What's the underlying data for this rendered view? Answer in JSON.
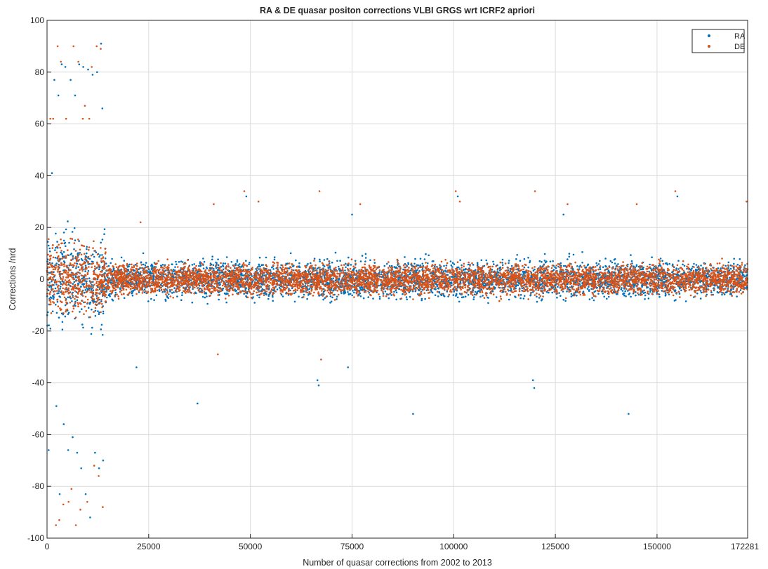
{
  "chart_data": {
    "type": "scatter",
    "title": "RA & DE quasar positon corrections VLBI GRGS wrt ICRF2 apriori",
    "xlabel": "Number of quasar corrections from 2002 to 2013",
    "ylabel": "Corrections /nrd",
    "xlim": [
      0,
      172281
    ],
    "ylim": [
      -100,
      100
    ],
    "xticks": [
      0,
      25000,
      50000,
      75000,
      100000,
      125000,
      150000,
      172281
    ],
    "xtick_labels": [
      "0",
      "25000",
      "50000",
      "75000",
      "100000",
      "125000",
      "150000",
      "172281"
    ],
    "yticks": [
      -100,
      -80,
      -60,
      -40,
      -20,
      0,
      20,
      40,
      60,
      80,
      100
    ],
    "ytick_labels": [
      "-100",
      "-80",
      "-60",
      "-40",
      "-20",
      "0",
      "20",
      "40",
      "60",
      "80",
      "100"
    ],
    "grid": true,
    "legend_position": "top-right",
    "series": [
      {
        "name": "RA",
        "color": "#0072bd",
        "points": [
          [
            400,
            -66
          ],
          [
            1200,
            41
          ],
          [
            1800,
            77
          ],
          [
            2300,
            -49
          ],
          [
            2800,
            71
          ],
          [
            3100,
            -83
          ],
          [
            3600,
            83
          ],
          [
            4100,
            -56
          ],
          [
            4500,
            82
          ],
          [
            5200,
            -66
          ],
          [
            5800,
            77
          ],
          [
            6300,
            -61
          ],
          [
            6900,
            71
          ],
          [
            7400,
            -67
          ],
          [
            7900,
            83
          ],
          [
            8400,
            -73
          ],
          [
            8900,
            82
          ],
          [
            9500,
            -83
          ],
          [
            10100,
            81
          ],
          [
            10600,
            -92
          ],
          [
            11200,
            79
          ],
          [
            11800,
            -67
          ],
          [
            12300,
            80
          ],
          [
            12800,
            -73
          ],
          [
            13300,
            91
          ],
          [
            13600,
            66
          ],
          [
            13800,
            -70
          ],
          [
            22000,
            -34
          ],
          [
            37000,
            -48
          ],
          [
            49000,
            32
          ],
          [
            66500,
            -39
          ],
          [
            66800,
            -41
          ],
          [
            74000,
            -34
          ],
          [
            75000,
            25
          ],
          [
            90000,
            -52
          ],
          [
            101000,
            32
          ],
          [
            119500,
            -39
          ],
          [
            119800,
            -42
          ],
          [
            127000,
            25
          ],
          [
            143000,
            -52
          ],
          [
            155000,
            32
          ]
        ]
      },
      {
        "name": "DE",
        "color": "#d95319",
        "points": [
          [
            800,
            62
          ],
          [
            1500,
            62
          ],
          [
            2200,
            -95
          ],
          [
            2600,
            90
          ],
          [
            3000,
            -93
          ],
          [
            3400,
            84
          ],
          [
            4000,
            -87
          ],
          [
            4700,
            62
          ],
          [
            5300,
            -86
          ],
          [
            6000,
            -81
          ],
          [
            6500,
            90
          ],
          [
            7100,
            -95
          ],
          [
            7700,
            84
          ],
          [
            8200,
            -89
          ],
          [
            8800,
            62
          ],
          [
            9300,
            67
          ],
          [
            9900,
            -86
          ],
          [
            10400,
            62
          ],
          [
            11000,
            82
          ],
          [
            11600,
            -72
          ],
          [
            12200,
            90
          ],
          [
            12700,
            -76
          ],
          [
            13200,
            89
          ],
          [
            13700,
            -88
          ],
          [
            23000,
            22
          ],
          [
            41000,
            29
          ],
          [
            42000,
            -29
          ],
          [
            48500,
            34
          ],
          [
            52000,
            30
          ],
          [
            67000,
            34
          ],
          [
            67400,
            -31
          ],
          [
            77000,
            29
          ],
          [
            100500,
            34
          ],
          [
            101500,
            30
          ],
          [
            120000,
            34
          ],
          [
            128000,
            29
          ],
          [
            145000,
            29
          ],
          [
            154500,
            34
          ],
          [
            172000,
            30
          ]
        ]
      }
    ],
    "dense_band": {
      "note_free": true,
      "segments": [
        {
          "x": [
            0,
            14500
          ],
          "ra_spread": 22,
          "de_spread": 18
        },
        {
          "x": [
            14500,
            172281
          ],
          "ra_spread": 9,
          "de_spread": 8
        }
      ]
    }
  }
}
